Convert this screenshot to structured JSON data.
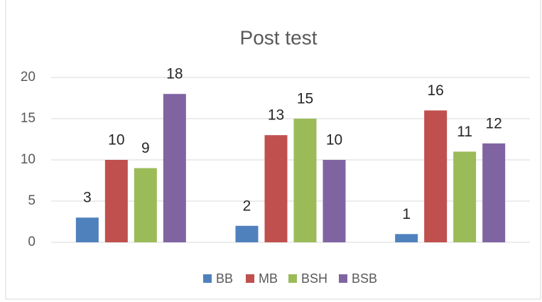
{
  "chart_data": {
    "type": "bar",
    "title": "Post test",
    "categories": [
      null,
      null,
      null
    ],
    "series": [
      {
        "name": "BB",
        "color": "#4f81bd",
        "values": [
          3,
          2,
          1
        ]
      },
      {
        "name": "MB",
        "color": "#c0504d",
        "values": [
          10,
          13,
          16
        ]
      },
      {
        "name": "BSH",
        "color": "#9bbb59",
        "values": [
          9,
          15,
          11
        ]
      },
      {
        "name": "BSB",
        "color": "#8064a2",
        "values": [
          18,
          10,
          12
        ]
      }
    ],
    "ylim": [
      0,
      20
    ],
    "yticks": [
      0,
      5,
      10,
      15,
      20
    ],
    "grid": true,
    "legend": "bottom"
  }
}
